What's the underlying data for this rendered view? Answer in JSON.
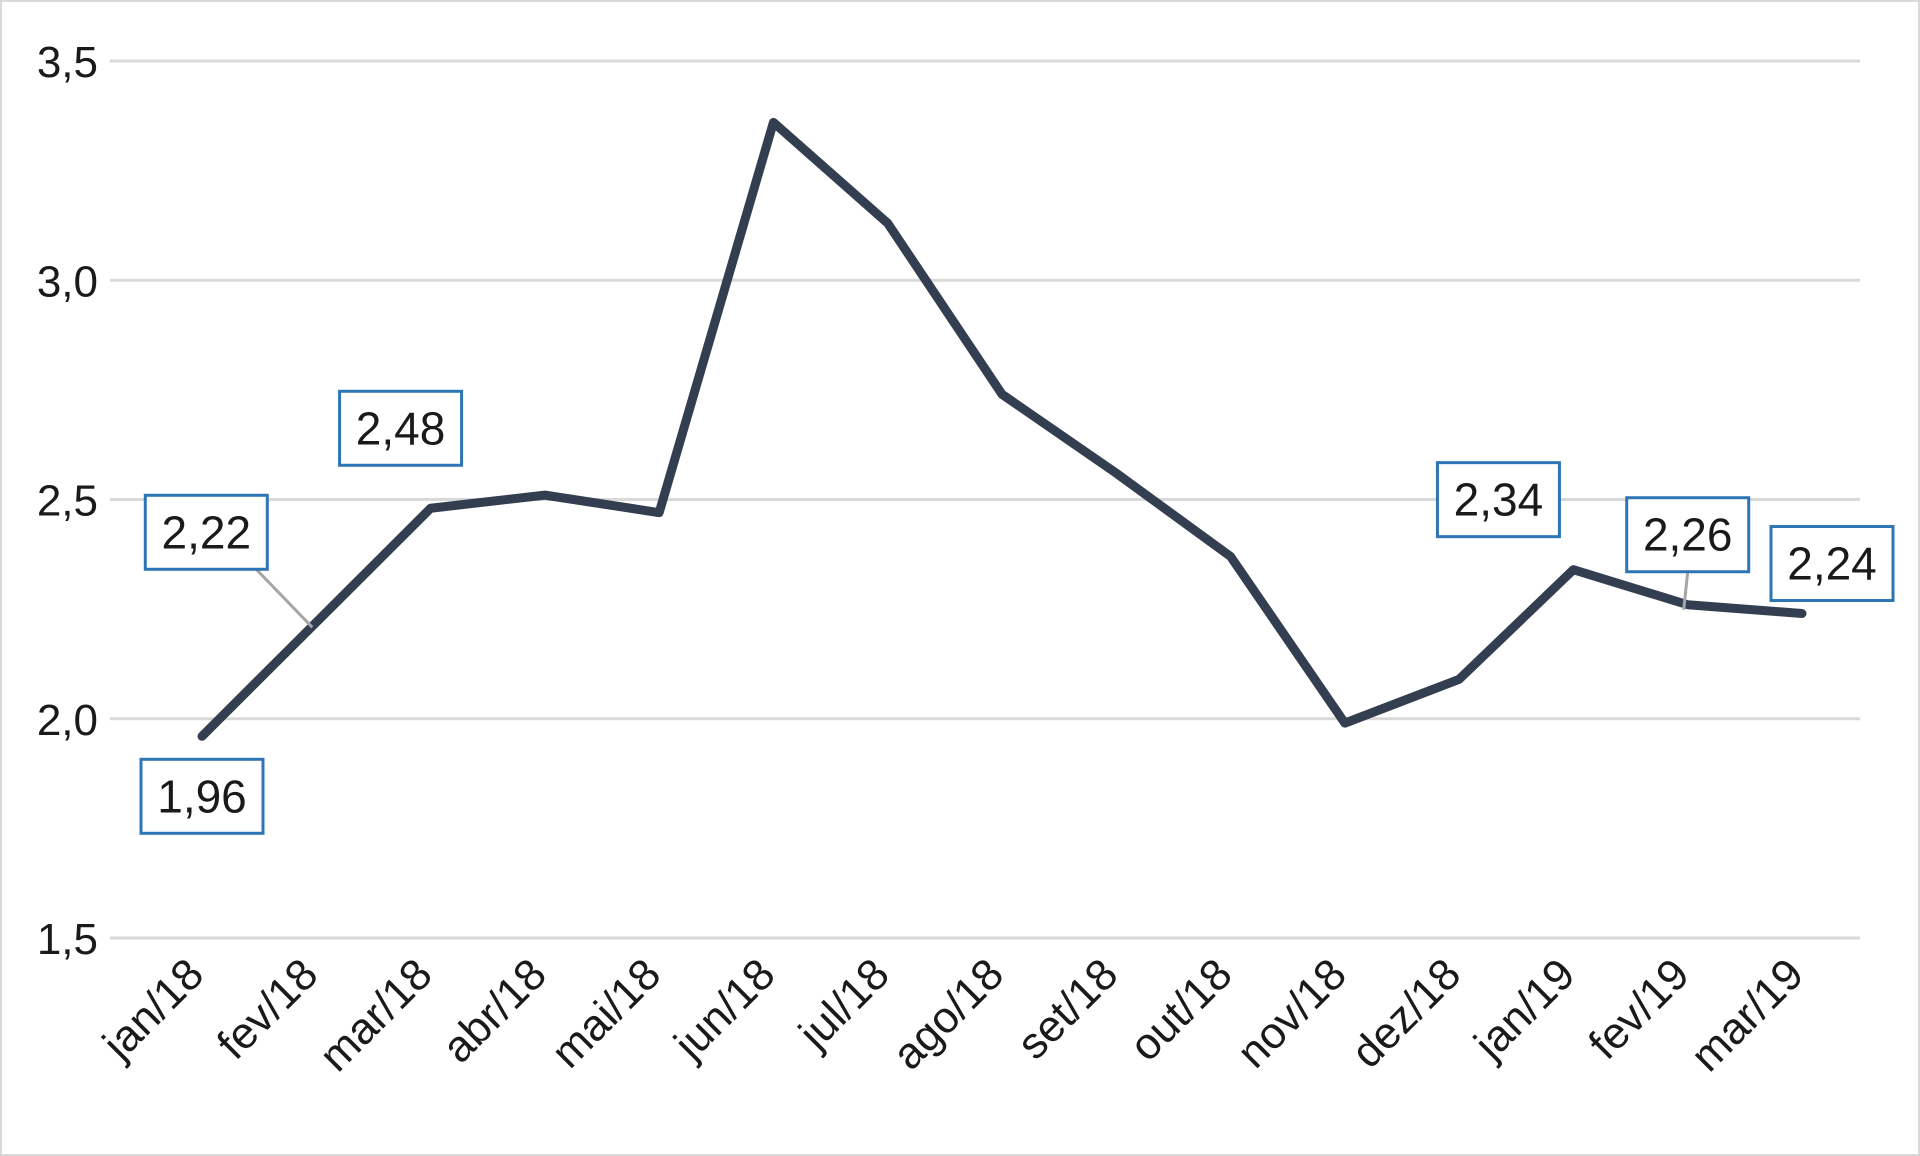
{
  "chart_data": {
    "type": "line",
    "title": "",
    "xlabel": "",
    "ylabel": "",
    "categories": [
      "jan/18",
      "fev/18",
      "mar/18",
      "abr/18",
      "mai/18",
      "jun/18",
      "jul/18",
      "ago/18",
      "set/18",
      "out/18",
      "nov/18",
      "dez/18",
      "jan/19",
      "fev/19",
      "mar/19"
    ],
    "series": [
      {
        "values": [
          1.96,
          2.22,
          2.48,
          2.51,
          2.47,
          3.36,
          3.13,
          2.74,
          2.56,
          2.37,
          1.99,
          2.09,
          2.34,
          2.26,
          2.24
        ]
      }
    ],
    "ylim": [
      1.5,
      3.5
    ],
    "yticks": [
      1.5,
      2.0,
      2.5,
      3.0,
      3.5
    ],
    "ytick_labels": [
      "1,5",
      "2,0",
      "2,5",
      "3,0",
      "3,5"
    ],
    "grid": "horizontal",
    "legend": "none",
    "data_labels": [
      {
        "index": 0,
        "text": "1,96",
        "placement": "below"
      },
      {
        "index": 1,
        "text": "2,22",
        "placement": "above-left"
      },
      {
        "index": 2,
        "text": "2,48",
        "placement": "above"
      },
      {
        "index": 12,
        "text": "2,34",
        "placement": "above"
      },
      {
        "index": 13,
        "text": "2,26",
        "placement": "above"
      },
      {
        "index": 14,
        "text": "2,24",
        "placement": "above"
      }
    ],
    "colors": {
      "line": "#333f50",
      "grid": "#d9d9d9",
      "label_border": "#2e75b6",
      "leader": "#a6a6a6"
    }
  }
}
